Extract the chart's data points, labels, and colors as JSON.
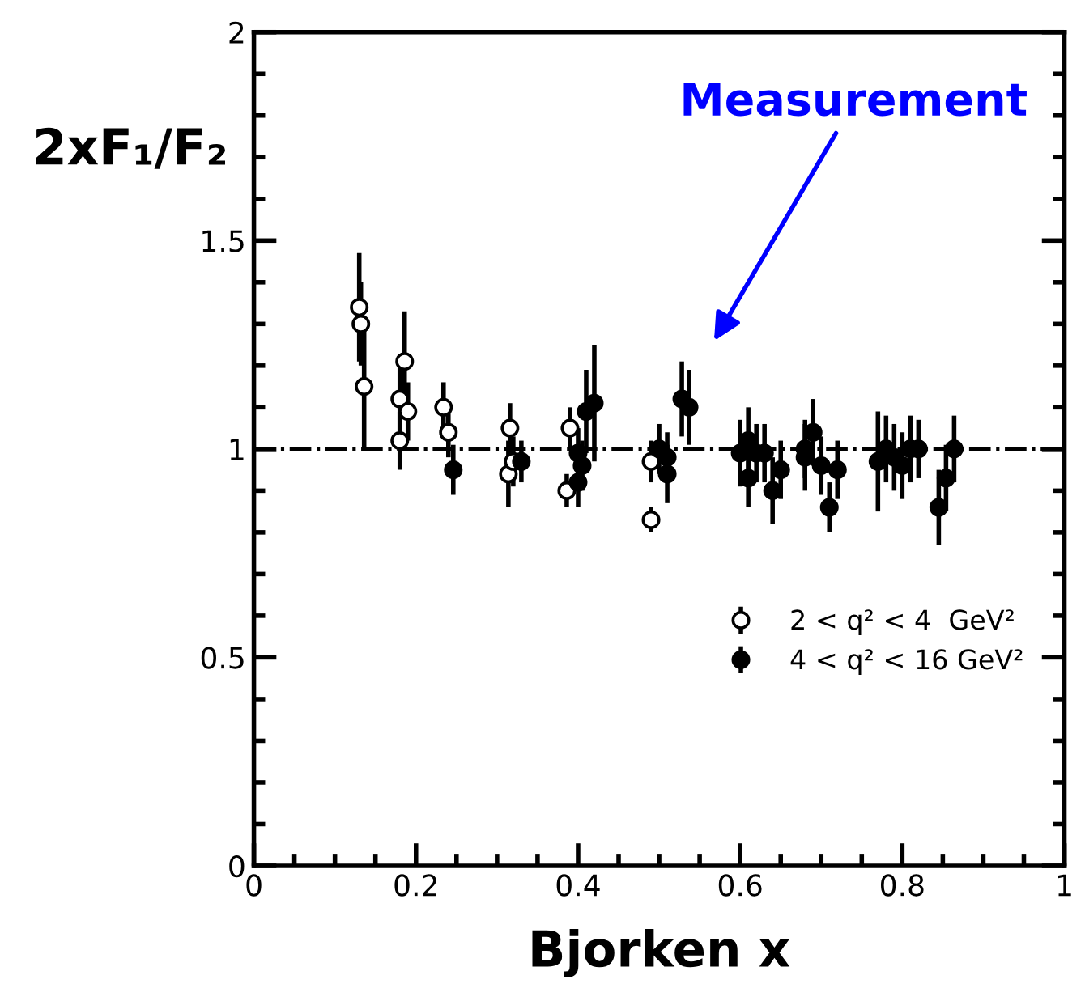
{
  "chart_data": {
    "type": "scatter",
    "xlabel": "Bjorken x",
    "ylabel": "2xF₁/F₂",
    "xlim": [
      0,
      1
    ],
    "ylim": [
      0,
      2
    ],
    "xticks": [
      0,
      0.2,
      0.4,
      0.6,
      0.8,
      1
    ],
    "yticks": [
      0,
      0.5,
      1,
      1.5,
      2
    ],
    "marker": "circle",
    "legend": "bottom right",
    "grid": false,
    "ref_lines": [
      {
        "axis": "y",
        "value": 1,
        "line_style": "dashed",
        "color": "#000000"
      }
    ],
    "annotations": [
      "Measurement"
    ],
    "series": [
      {
        "name": "2 < q² < 4  GeV²",
        "color": "#ffffff",
        "x": [
          0.13,
          0.132,
          0.136,
          0.186,
          0.18,
          0.19,
          0.18,
          0.234,
          0.24,
          0.316,
          0.314,
          0.32,
          0.39,
          0.386,
          0.49,
          0.49
        ],
        "values": [
          1.34,
          1.3,
          1.15,
          1.21,
          1.12,
          1.09,
          1.02,
          1.1,
          1.04,
          1.05,
          0.94,
          0.97,
          1.05,
          0.9,
          0.97,
          0.83
        ],
        "errors": [
          0.13,
          0.1,
          0.15,
          0.12,
          0.08,
          0.07,
          0.07,
          0.06,
          0.06,
          0.06,
          0.08,
          0.06,
          0.05,
          0.04,
          0.05,
          0.03
        ]
      },
      {
        "name": "4 < q² < 16 GeV²",
        "color": "#000000",
        "x": [
          0.246,
          0.33,
          0.4,
          0.4,
          0.41,
          0.42,
          0.405,
          0.5,
          0.51,
          0.51,
          0.528,
          0.537,
          0.6,
          0.61,
          0.61,
          0.62,
          0.63,
          0.64,
          0.65,
          0.68,
          0.69,
          0.68,
          0.7,
          0.71,
          0.72,
          0.77,
          0.78,
          0.79,
          0.8,
          0.81,
          0.82,
          0.845,
          0.854,
          0.864
        ],
        "values": [
          0.95,
          0.97,
          0.99,
          0.92,
          1.09,
          1.11,
          0.96,
          1.0,
          0.94,
          0.98,
          1.12,
          1.1,
          0.99,
          0.93,
          1.02,
          0.99,
          0.99,
          0.9,
          0.95,
          0.98,
          1.04,
          1.0,
          0.96,
          0.86,
          0.95,
          0.97,
          1.0,
          0.98,
          0.96,
          1.0,
          1.0,
          0.86,
          0.93,
          1.0
        ],
        "errors": [
          0.06,
          0.05,
          0.06,
          0.06,
          0.1,
          0.14,
          0.06,
          0.06,
          0.07,
          0.06,
          0.09,
          0.09,
          0.08,
          0.07,
          0.08,
          0.07,
          0.07,
          0.08,
          0.07,
          0.08,
          0.08,
          0.07,
          0.07,
          0.06,
          0.07,
          0.12,
          0.08,
          0.08,
          0.08,
          0.08,
          0.07,
          0.09,
          0.08,
          0.08
        ]
      }
    ]
  }
}
